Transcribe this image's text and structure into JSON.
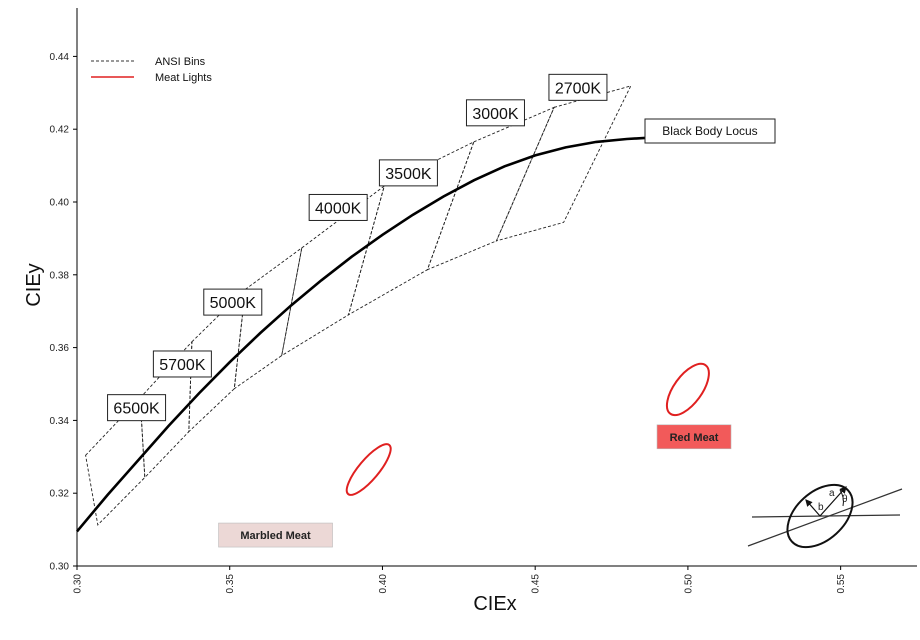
{
  "chart_data": {
    "type": "scatter",
    "xlabel": "CIEx",
    "ylabel": "CIEy",
    "xlim": [
      0.3,
      0.575
    ],
    "ylim": [
      0.3,
      0.45
    ],
    "xticks": [
      0.3,
      0.35,
      0.4,
      0.45,
      0.5,
      0.55
    ],
    "xtick_labels": [
      "0.30",
      "0.35",
      "0.40",
      "0.45",
      "0.50",
      "0.55"
    ],
    "yticks": [
      0.3,
      0.32,
      0.34,
      0.36,
      0.38,
      0.4,
      0.42,
      0.44
    ],
    "ytick_labels": [
      "0.30",
      "0.32",
      "0.34",
      "0.36",
      "0.38",
      "0.40",
      "0.42",
      "0.44"
    ],
    "grid": false,
    "legend": {
      "position": "top-left",
      "entries": [
        {
          "label": "ANSI Bins",
          "style": "dashed",
          "color": "#333333"
        },
        {
          "label": "Meat Lights",
          "style": "solid",
          "color": "#e02020"
        }
      ]
    },
    "black_body_locus": {
      "label": "Black Body Locus",
      "x": [
        0.3,
        0.31,
        0.32,
        0.33,
        0.34,
        0.35,
        0.36,
        0.37,
        0.38,
        0.39,
        0.4,
        0.41,
        0.42,
        0.43,
        0.44,
        0.45,
        0.46,
        0.47,
        0.48,
        0.49
      ],
      "y": [
        0.3095,
        0.3195,
        0.329,
        0.3385,
        0.3475,
        0.356,
        0.364,
        0.3715,
        0.3785,
        0.385,
        0.391,
        0.3965,
        0.4015,
        0.406,
        0.4098,
        0.4128,
        0.415,
        0.4165,
        0.4173,
        0.4178
      ]
    },
    "ansi_bins": [
      {
        "label": "6500K",
        "label_at": [
          0.3195,
          0.3435
        ],
        "quad": [
          [
            0.3028,
            0.3304
          ],
          [
            0.3207,
            0.3462
          ],
          [
            0.3222,
            0.3243
          ],
          [
            0.3068,
            0.3113
          ]
        ]
      },
      {
        "label": "5700K",
        "label_at": [
          0.3345,
          0.3555
        ],
        "quad": [
          [
            0.3207,
            0.3462
          ],
          [
            0.3376,
            0.3616
          ],
          [
            0.3366,
            0.3369
          ],
          [
            0.3222,
            0.3243
          ]
        ]
      },
      {
        "label": "5000K",
        "label_at": [
          0.351,
          0.3725
        ],
        "quad": [
          [
            0.3376,
            0.3616
          ],
          [
            0.3551,
            0.376
          ],
          [
            0.3515,
            0.3487
          ],
          [
            0.3366,
            0.3369
          ]
        ]
      },
      {
        "label": "4000K",
        "label_at": [
          0.3855,
          0.3985
        ],
        "quad": [
          [
            0.3551,
            0.376
          ],
          [
            0.3736,
            0.3874
          ],
          [
            0.367,
            0.3578
          ],
          [
            0.3515,
            0.3487
          ]
        ]
      },
      {
        "label": "3500K",
        "label_at": [
          0.4085,
          0.408
        ],
        "quad": [
          [
            0.3736,
            0.3874
          ],
          [
            0.4006,
            0.4044
          ],
          [
            0.3889,
            0.369
          ],
          [
            0.367,
            0.3578
          ]
        ]
      },
      {
        "label": "3000K",
        "label_at": [
          0.437,
          0.4245
        ],
        "quad": [
          [
            0.4006,
            0.4044
          ],
          [
            0.4299,
            0.4165
          ],
          [
            0.4147,
            0.3814
          ],
          [
            0.3889,
            0.369
          ]
        ]
      },
      {
        "label": "2700K",
        "label_at": [
          0.464,
          0.4315
        ],
        "quad": [
          [
            0.4299,
            0.4165
          ],
          [
            0.4562,
            0.426
          ],
          [
            0.4373,
            0.3893
          ],
          [
            0.4147,
            0.3814
          ]
        ]
      },
      {
        "label": "",
        "quad": [
          [
            0.4562,
            0.426
          ],
          [
            0.4813,
            0.4319
          ],
          [
            0.4593,
            0.3944
          ],
          [
            0.4373,
            0.3893
          ]
        ]
      }
    ],
    "meat_lights": [
      {
        "label": "Marbled Meat",
        "center": [
          0.3955,
          0.3265
        ],
        "label_at": [
          0.365,
          0.3085
        ],
        "label_bg": "#ecd8d6",
        "color": "#e02020"
      },
      {
        "label": "Red Meat",
        "center": [
          0.5,
          0.3485
        ],
        "label_at": [
          0.502,
          0.3355
        ],
        "label_bg": "#f25a5a",
        "color": "#e02020"
      }
    ],
    "ellipse_diagram": {
      "labels": [
        "a",
        "b",
        "θ"
      ]
    }
  }
}
